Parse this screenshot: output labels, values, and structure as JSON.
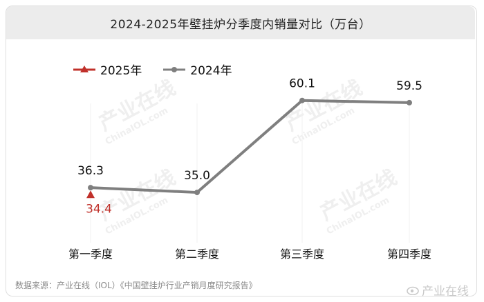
{
  "title": "2024-2025年壁挂炉分季度内销量对比（万台）",
  "source": "数据来源：产业在线（IOL）《中国壁挂炉行业产销月度研究报告》",
  "watermark": {
    "text": "产业在线",
    "sub": "ChinaIOL.com",
    "weibo": "产业在线"
  },
  "colors": {
    "series_2025": "#c0302a",
    "series_2024": "#7f7f7f",
    "title_bg": "#ececec"
  },
  "chart_data": {
    "type": "line",
    "title": "2024-2025年壁挂炉分季度内销量对比（万台）",
    "categories": [
      "第一季度",
      "第二季度",
      "第三季度",
      "第四季度"
    ],
    "series": [
      {
        "name": "2025年",
        "values": [
          34.4,
          null,
          null,
          null
        ],
        "labels": [
          "34.4",
          "",
          "",
          ""
        ],
        "color": "#c0302a",
        "marker": "triangle"
      },
      {
        "name": "2024年",
        "values": [
          36.3,
          35.0,
          60.1,
          59.5
        ],
        "labels": [
          "36.3",
          "35.0",
          "60.1",
          "59.5"
        ],
        "color": "#7f7f7f",
        "marker": "circle"
      }
    ],
    "ylim": [
      0,
      80
    ],
    "grid": false,
    "legend_position": "top-left"
  }
}
